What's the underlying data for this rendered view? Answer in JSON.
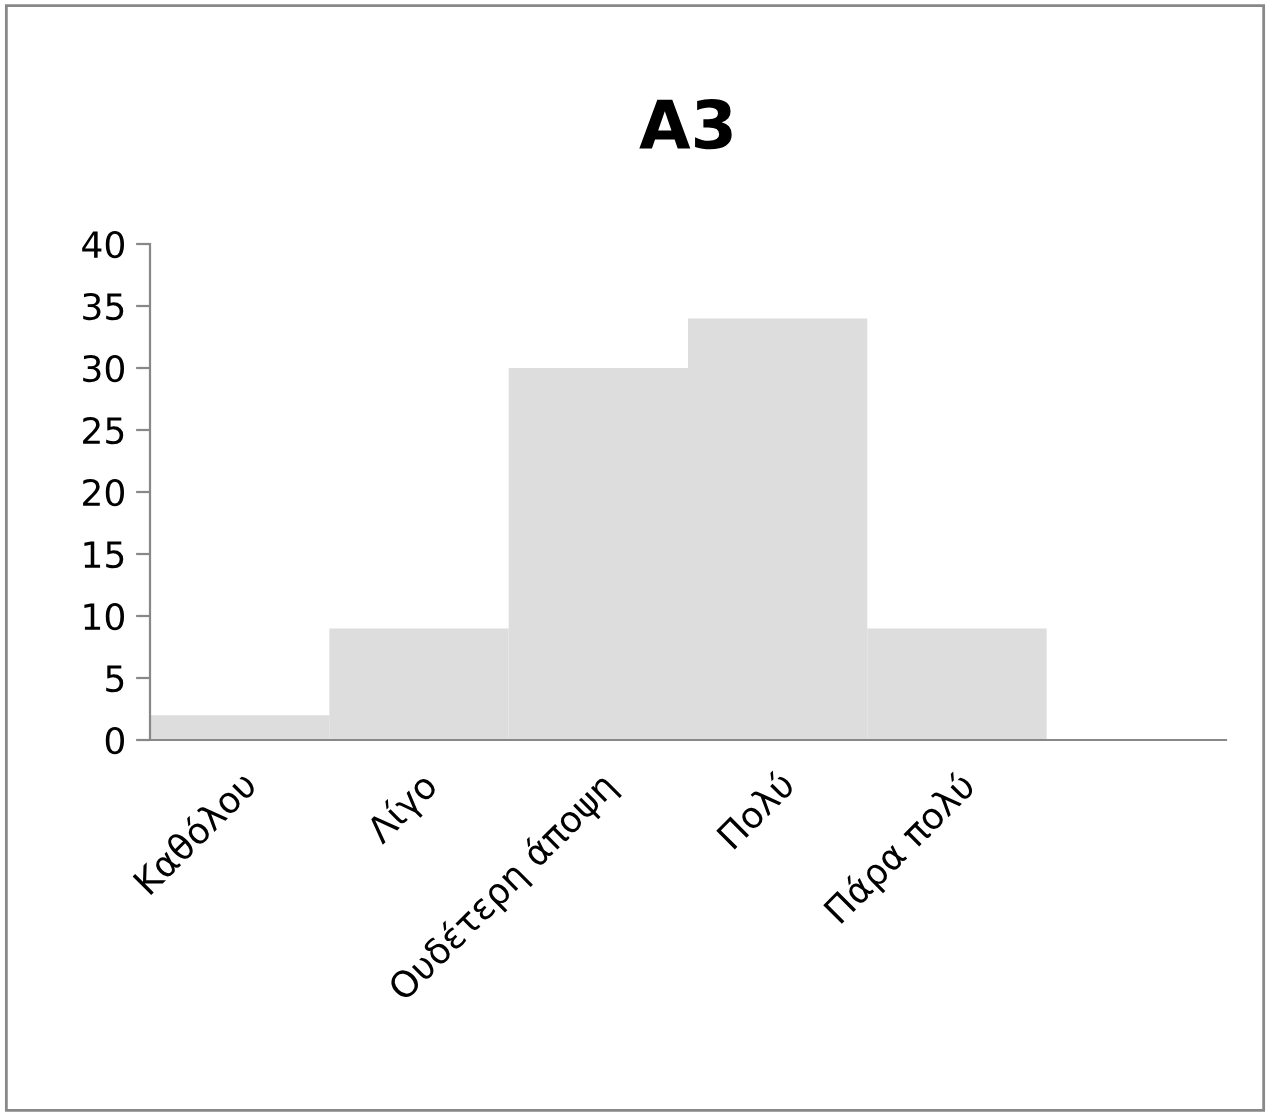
{
  "chart_data": {
    "type": "bar",
    "title": "A3",
    "categories": [
      "Καθόλου",
      "Λίγο",
      "Ουδέτερη άποψη",
      "Πολύ",
      "Πάρα πολύ",
      null
    ],
    "values": [
      2,
      9,
      30,
      34,
      9,
      null
    ],
    "color": "#dddddd",
    "ylim": [
      0,
      40
    ],
    "yticks": [
      0,
      5,
      10,
      15,
      20,
      25,
      30,
      35,
      40
    ],
    "grid": false,
    "legend": false
  }
}
